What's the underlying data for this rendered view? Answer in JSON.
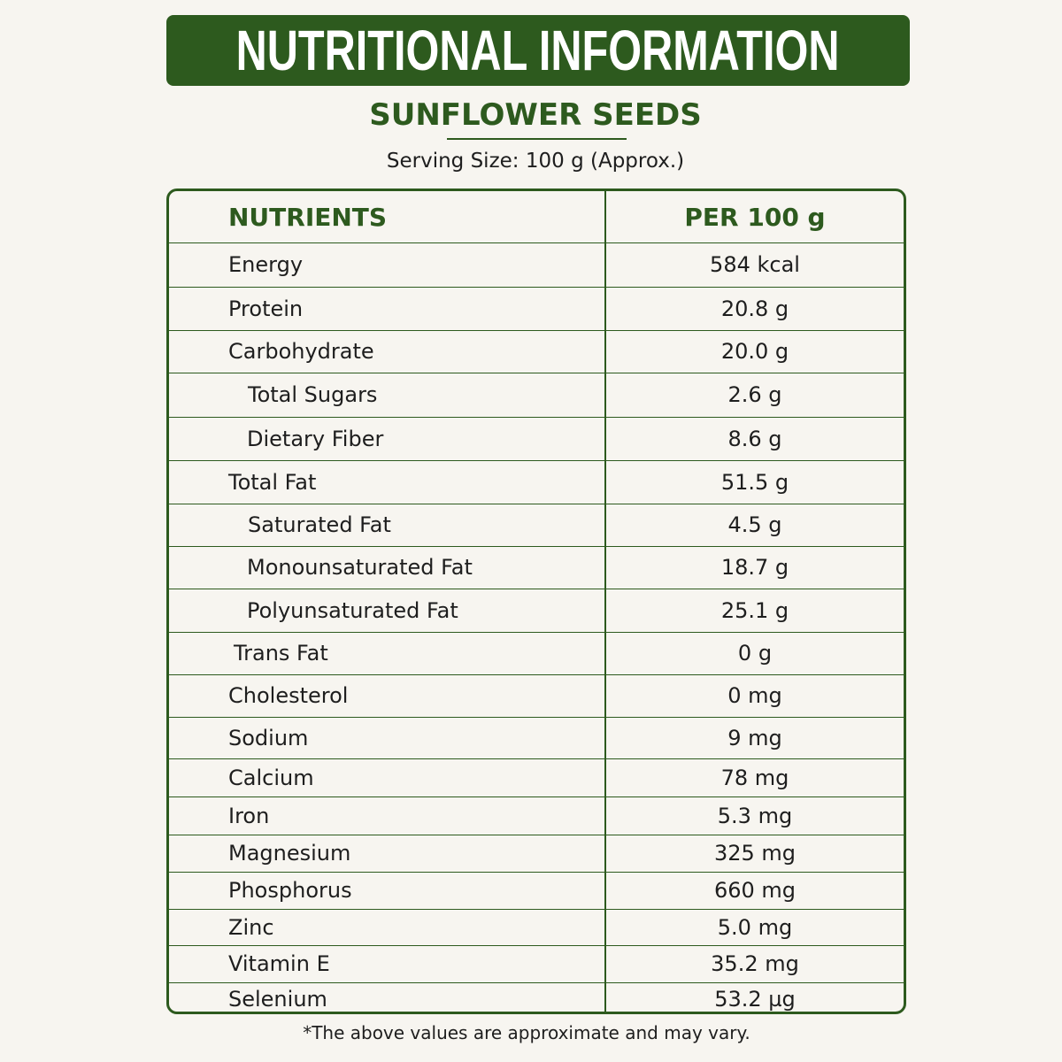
{
  "header": {
    "title": "NUTRITIONAL INFORMATION",
    "subtitle": "SUNFLOWER SEEDS",
    "serving": "Serving Size: 100 g (Approx.)"
  },
  "table": {
    "columns": [
      "NUTRIENTS",
      "PER 100 g"
    ],
    "rows": [
      [
        "Energy",
        "584 kcal"
      ],
      [
        "Protein",
        "20.8 g"
      ],
      [
        "Carbohydrate",
        "20.0 g"
      ],
      [
        "Total Sugars",
        "2.6 g"
      ],
      [
        "Dietary Fiber",
        "8.6 g"
      ],
      [
        "Total Fat",
        "51.5 g"
      ],
      [
        "Saturated Fat",
        "4.5 g"
      ],
      [
        "Monounsaturated Fat",
        "18.7 g"
      ],
      [
        "Polyunsaturated Fat",
        "25.1 g"
      ],
      [
        "Trans Fat",
        "0 g"
      ],
      [
        "Cholesterol",
        "0 mg"
      ],
      [
        "Sodium",
        "9 mg"
      ],
      [
        "Calcium",
        "78 mg"
      ],
      [
        "Iron",
        "5.3 mg"
      ],
      [
        "Magnesium",
        "325 mg"
      ],
      [
        "Phosphorus",
        "660 mg"
      ],
      [
        "Zinc",
        "5.0 mg"
      ],
      [
        "Vitamin E",
        "35.2 mg"
      ],
      [
        "Selenium",
        "53.2 µg"
      ]
    ]
  },
  "footnote": "*The above values are approximate and may vary."
}
